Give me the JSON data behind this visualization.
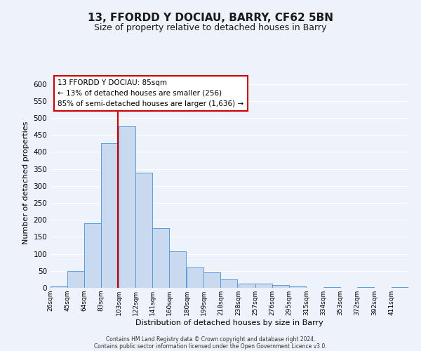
{
  "title": "13, FFORDD Y DOCIAU, BARRY, CF62 5BN",
  "subtitle": "Size of property relative to detached houses in Barry",
  "xlabel": "Distribution of detached houses by size in Barry",
  "ylabel": "Number of detached properties",
  "categories": [
    "26sqm",
    "45sqm",
    "64sqm",
    "83sqm",
    "103sqm",
    "122sqm",
    "141sqm",
    "160sqm",
    "180sqm",
    "199sqm",
    "218sqm",
    "238sqm",
    "257sqm",
    "276sqm",
    "295sqm",
    "315sqm",
    "334sqm",
    "353sqm",
    "372sqm",
    "392sqm",
    "411sqm"
  ],
  "bin_edges": [
    26,
    45,
    64,
    83,
    103,
    122,
    141,
    160,
    180,
    199,
    218,
    238,
    257,
    276,
    295,
    315,
    334,
    353,
    372,
    392,
    411
  ],
  "bin_width": 19,
  "bar_heights": [
    5,
    50,
    190,
    425,
    475,
    338,
    175,
    108,
    60,
    45,
    25,
    12,
    12,
    8,
    5,
    0,
    2,
    0,
    2,
    0,
    2
  ],
  "bar_color": "#c9d9f0",
  "bar_edge_color": "#5b9bd5",
  "vline_x": 83,
  "vline_color": "#cc0000",
  "annotation_line1": "13 FFORDD Y DOCIAU: 85sqm",
  "annotation_line2": "← 13% of detached houses are smaller (256)",
  "annotation_line3": "85% of semi-detached houses are larger (1,636) →",
  "annotation_box_color": "#cc0000",
  "ylim": [
    0,
    620
  ],
  "yticks": [
    0,
    50,
    100,
    150,
    200,
    250,
    300,
    350,
    400,
    450,
    500,
    550,
    600
  ],
  "footer_line1": "Contains HM Land Registry data © Crown copyright and database right 2024.",
  "footer_line2": "Contains public sector information licensed under the Open Government Licence v3.0.",
  "background_color": "#eef2fa",
  "grid_color": "#ffffff",
  "title_fontsize": 11,
  "subtitle_fontsize": 9
}
